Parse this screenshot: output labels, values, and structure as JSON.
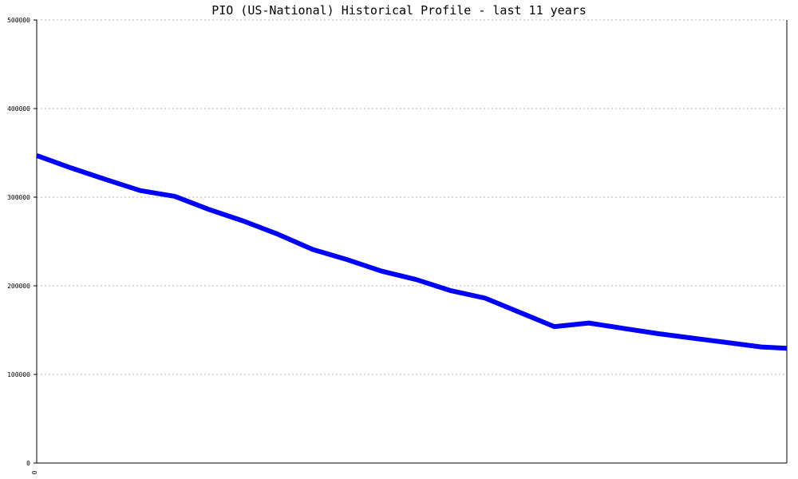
{
  "chart_data": {
    "type": "line",
    "title": "PIO (US-National) Historical Profile - last 11 years",
    "xlabel": "",
    "ylabel": "",
    "x_tick_labels": [
      "0"
    ],
    "y_tick_labels": [
      "0",
      "100000",
      "200000",
      "300000",
      "400000",
      "500000"
    ],
    "ylim": [
      0,
      500000
    ],
    "xlim": [
      0,
      1
    ],
    "grid": true,
    "series": [
      {
        "color": "#0000ff",
        "x": [
          0,
          0.046,
          0.092,
          0.138,
          0.184,
          0.23,
          0.276,
          0.322,
          0.368,
          0.414,
          0.46,
          0.506,
          0.552,
          0.598,
          0.644,
          0.69,
          0.736,
          0.782,
          0.828,
          0.874,
          0.92,
          0.966,
          1.0
        ],
        "values": [
          347000,
          333000,
          320000,
          307500,
          301000,
          286000,
          273000,
          258000,
          241000,
          229500,
          216500,
          207000,
          194500,
          186000,
          170000,
          154000,
          158000,
          152000,
          146000,
          141000,
          136000,
          131000,
          129500
        ]
      }
    ]
  }
}
